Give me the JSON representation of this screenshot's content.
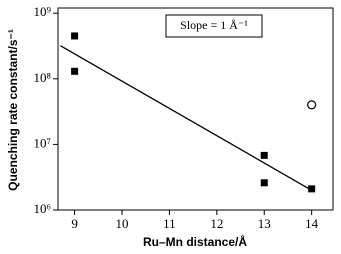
{
  "chart_data": {
    "type": "scatter",
    "x_label": "Ru–Mn distance/Å",
    "y_label": "Quenching rate constant/s⁻¹",
    "annotation": "Slope = 1 Å⁻¹",
    "xlim": [
      8.65,
      14.45
    ],
    "xticks": [
      9,
      10,
      11,
      12,
      13,
      14
    ],
    "ylim": [
      1000000,
      1200000000
    ],
    "log_y": true,
    "yticks": [
      {
        "value": 1000000,
        "label": "10⁶"
      },
      {
        "value": 10000000,
        "label": "10⁷"
      },
      {
        "value": 100000000,
        "label": "10⁸"
      },
      {
        "value": 1000000000,
        "label": "10⁹"
      }
    ],
    "series": [
      {
        "mode": "markers",
        "marker": "square",
        "color": "#000000",
        "x": [
          9,
          9,
          13,
          13,
          14
        ],
        "values": [
          450000000,
          130000000,
          6800000,
          2600000,
          2100000
        ]
      },
      {
        "mode": "markers",
        "marker": "open-circle",
        "color": "#000000",
        "x": [
          14
        ],
        "values": [
          40000000
        ]
      },
      {
        "mode": "line",
        "color": "#000000",
        "x": [
          8.7,
          14
        ],
        "values": [
          320000000,
          2000000
        ]
      }
    ]
  }
}
